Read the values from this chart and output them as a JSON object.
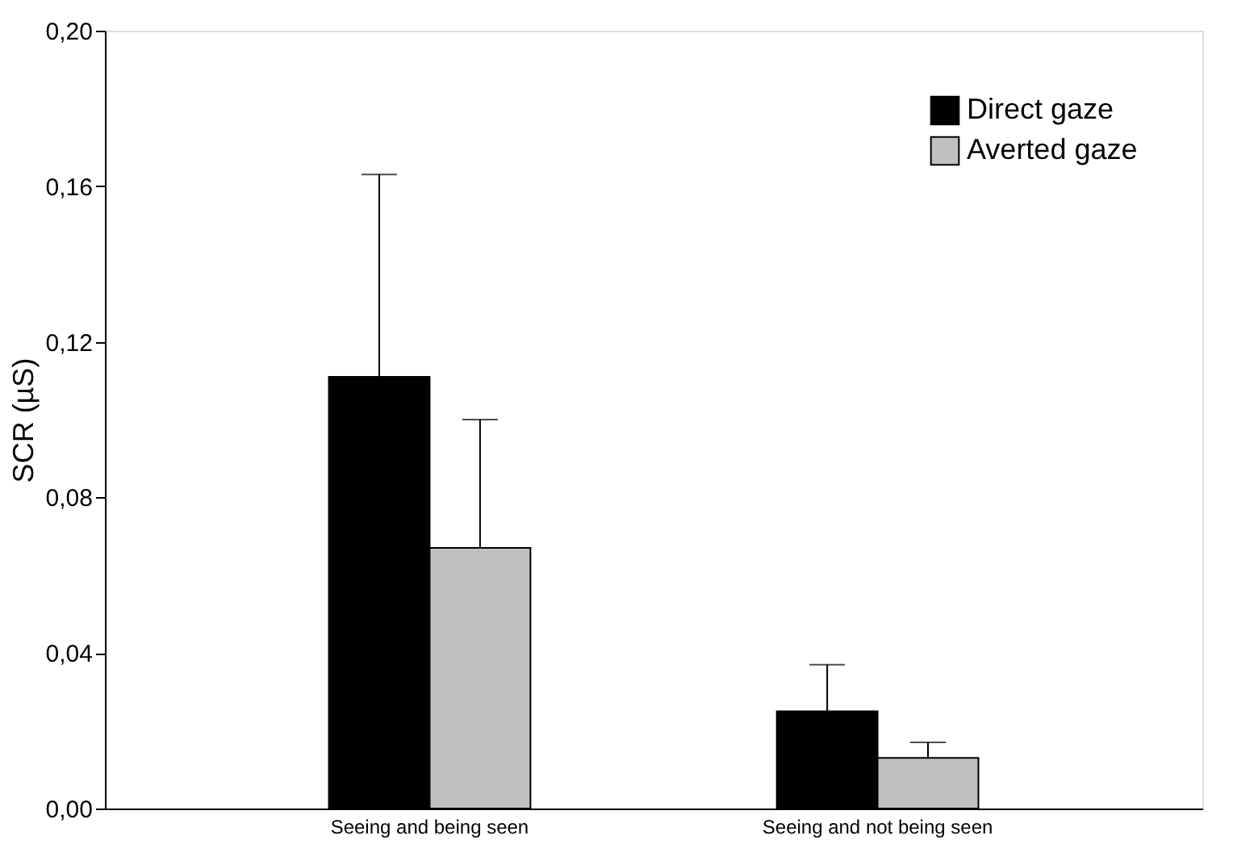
{
  "chart_data": {
    "type": "bar",
    "ylabel": "SCR (µS)",
    "categories": [
      "Seeing and being seen",
      "Seeing and not being seen"
    ],
    "series": [
      {
        "name": "Direct gaze",
        "color": "#000000",
        "values": [
          0.111,
          0.025
        ],
        "errors": [
          [
            0.111,
            0.163
          ],
          [
            0.025,
            0.037
          ]
        ]
      },
      {
        "name": "Averted gaze",
        "color": "#c0c0c0",
        "values": [
          0.067,
          0.013
        ],
        "errors": [
          [
            0.067,
            0.1
          ],
          [
            0.013,
            0.017
          ]
        ]
      }
    ],
    "ylim": [
      0,
      0.2
    ],
    "yticks": [
      {
        "value": 0,
        "label": "0,00"
      },
      {
        "value": 0.04,
        "label": "0,04"
      },
      {
        "value": 0.08,
        "label": "0,08"
      },
      {
        "value": 0.12,
        "label": "0,12"
      },
      {
        "value": 0.16,
        "label": "0,16"
      },
      {
        "value": 0.2,
        "label": "0,20"
      }
    ],
    "grid": false,
    "legend": "top right"
  }
}
